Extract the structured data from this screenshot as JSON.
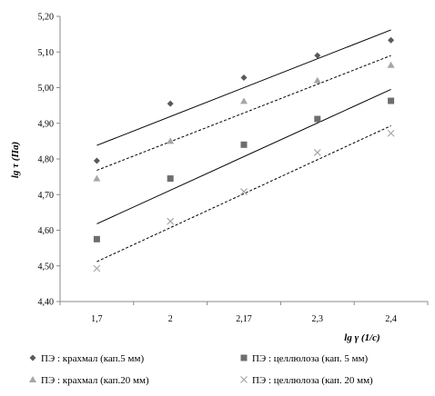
{
  "chart_data": {
    "type": "scatter",
    "title": "",
    "xlabel": "lg γ (1/c)",
    "ylabel": "lg τ (Па)",
    "categories": [
      "1,7",
      "2",
      "2,17",
      "2,3",
      "2,4"
    ],
    "y_tick_labels": [
      "4,40",
      "4,50",
      "4,60",
      "4,70",
      "4,80",
      "4,90",
      "5,00",
      "5,10",
      "5,20"
    ],
    "ylim": [
      4.4,
      5.2
    ],
    "grid": false,
    "legend_position": "bottom",
    "series": [
      {
        "name": "ПЭ : крахмал (кап.5 мм)",
        "marker": "diamond",
        "color": "#595959",
        "values": [
          4.795,
          4.955,
          5.028,
          5.09,
          5.133
        ],
        "trend": {
          "start": 4.838,
          "end": 5.162,
          "style": "solid"
        }
      },
      {
        "name": "ПЭ : целлюлоза (кап. 5 мм)",
        "marker": "square",
        "color": "#6e6e6e",
        "values": [
          4.575,
          4.745,
          4.84,
          4.912,
          4.963
        ],
        "trend": {
          "start": 4.618,
          "end": 4.995,
          "style": "solid"
        }
      },
      {
        "name": "ПЭ : крахмал (кап.20 мм)",
        "marker": "triangle",
        "color": "#a6a6a6",
        "values": [
          4.745,
          4.85,
          4.962,
          5.02,
          5.063
        ],
        "trend": {
          "start": 4.768,
          "end": 5.09,
          "style": "dashed"
        }
      },
      {
        "name": "ПЭ : целлюлоза (кап. 20 мм)",
        "marker": "cross",
        "color": "#a6a6a6",
        "values": [
          4.493,
          4.625,
          4.708,
          4.818,
          4.872
        ],
        "trend": {
          "start": 4.512,
          "end": 4.893,
          "style": "dashed"
        }
      }
    ]
  }
}
